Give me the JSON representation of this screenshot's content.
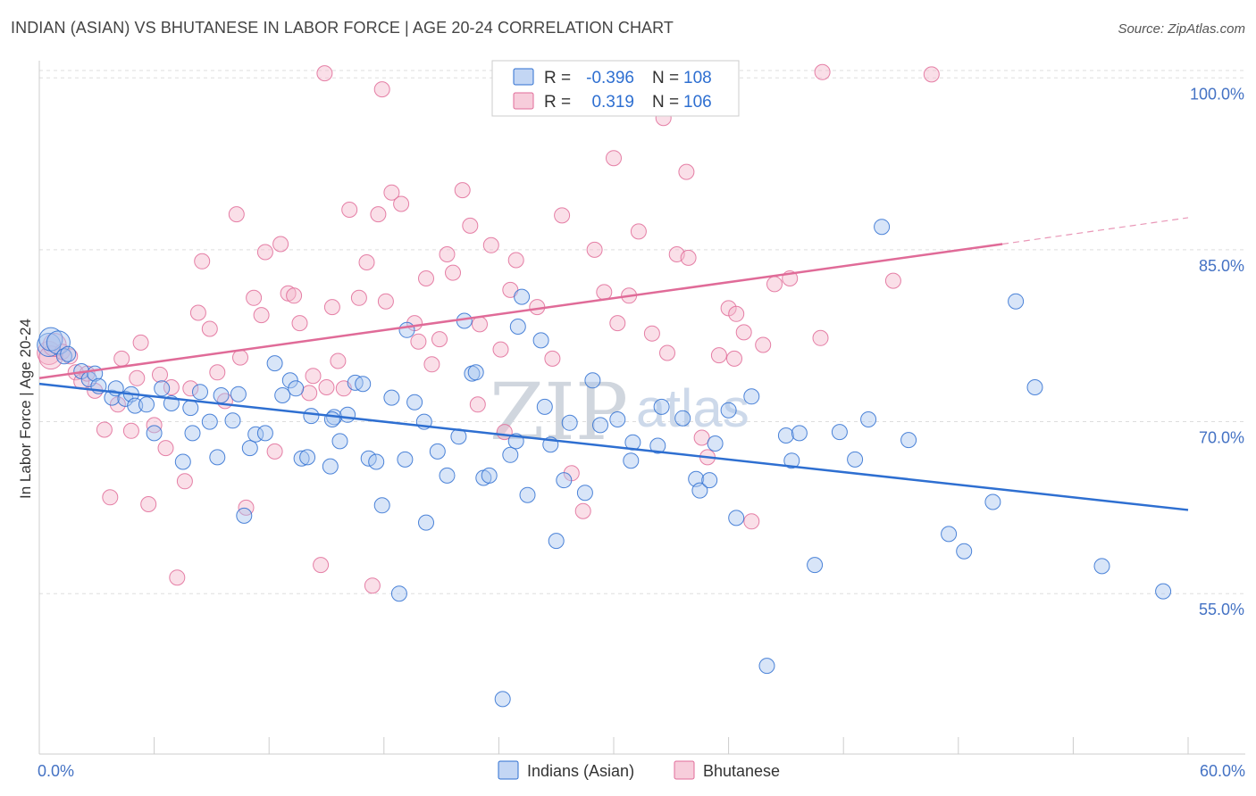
{
  "title": "INDIAN (ASIAN) VS BHUTANESE IN LABOR FORCE | AGE 20-24 CORRELATION CHART",
  "source": "Source: ZipAtlas.com",
  "watermark": {
    "zip": "ZIP",
    "atlas": "atlas"
  },
  "colors": {
    "blue": "#2e6fd1",
    "blue_fill": "#a9c5ef",
    "pink": "#e06b98",
    "pink_fill": "#f4b8cc",
    "tick_text": "#4472c4",
    "grid": "#dddddd"
  },
  "legend": {
    "rows": [
      {
        "r_label": "R =",
        "r_value": "-0.396",
        "n_label": "N =",
        "n_value": "108"
      },
      {
        "r_label": "R =",
        "r_value": "0.319",
        "n_label": "N =",
        "n_value": "106"
      }
    ]
  },
  "bottom_legend": [
    "Indians (Asian)",
    "Bhutanese"
  ],
  "chart_data": {
    "type": "scatter",
    "title": "INDIAN (ASIAN) VS BHUTANESE IN LABOR FORCE | AGE 20-24 CORRELATION CHART",
    "xlabel": "",
    "ylabel": "In Labor Force | Age 20-24",
    "xlim": [
      0,
      60
    ],
    "ylim": [
      41,
      101.5
    ],
    "x_tick_labels": [
      "0.0%",
      "60.0%"
    ],
    "y_ticks": [
      55,
      70,
      85,
      100
    ],
    "y_tick_labels": [
      "55.0%",
      "70.0%",
      "85.0%",
      "100.0%"
    ],
    "grid": true,
    "legend_position": "top-center",
    "series": [
      {
        "name": "Indians (Asian)",
        "color": "#2e6fd1",
        "r": -0.396,
        "n": 108,
        "trend": {
          "x0": 0,
          "y0": 73.3,
          "x1": 60,
          "y1": 62.3
        },
        "points": [
          [
            0.5,
            76.7
          ],
          [
            0.6,
            77.2
          ],
          [
            1.0,
            76.9
          ],
          [
            1.3,
            75.7
          ],
          [
            1.5,
            75.9
          ],
          [
            2.2,
            74.4
          ],
          [
            2.6,
            73.7
          ],
          [
            2.9,
            74.2
          ],
          [
            3.1,
            73.1
          ],
          [
            3.8,
            72.1
          ],
          [
            4.0,
            72.9
          ],
          [
            4.5,
            72.0
          ],
          [
            4.8,
            72.4
          ],
          [
            5.0,
            71.4
          ],
          [
            5.6,
            71.5
          ],
          [
            6.0,
            69.0
          ],
          [
            6.4,
            72.9
          ],
          [
            6.9,
            71.6
          ],
          [
            7.5,
            66.5
          ],
          [
            7.9,
            71.2
          ],
          [
            8.0,
            69.0
          ],
          [
            8.4,
            72.6
          ],
          [
            8.9,
            70.0
          ],
          [
            9.3,
            66.9
          ],
          [
            9.5,
            72.3
          ],
          [
            10.1,
            70.1
          ],
          [
            10.4,
            72.4
          ],
          [
            10.7,
            61.8
          ],
          [
            11.0,
            67.7
          ],
          [
            11.3,
            68.9
          ],
          [
            11.8,
            69.0
          ],
          [
            12.3,
            75.1
          ],
          [
            12.7,
            72.3
          ],
          [
            13.1,
            73.6
          ],
          [
            13.4,
            72.9
          ],
          [
            13.7,
            66.8
          ],
          [
            14.0,
            66.9
          ],
          [
            14.2,
            70.5
          ],
          [
            15.2,
            66.1
          ],
          [
            15.4,
            70.4
          ],
          [
            15.7,
            68.3
          ],
          [
            16.1,
            70.6
          ],
          [
            16.5,
            73.4
          ],
          [
            16.9,
            73.3
          ],
          [
            17.2,
            66.8
          ],
          [
            17.6,
            66.5
          ],
          [
            17.9,
            62.7
          ],
          [
            18.4,
            72.1
          ],
          [
            18.8,
            55.0
          ],
          [
            19.1,
            66.7
          ],
          [
            19.6,
            71.7
          ],
          [
            20.1,
            70.0
          ],
          [
            20.2,
            61.2
          ],
          [
            20.8,
            67.4
          ],
          [
            21.3,
            65.3
          ],
          [
            21.9,
            68.7
          ],
          [
            22.2,
            78.8
          ],
          [
            22.6,
            74.2
          ],
          [
            22.8,
            74.3
          ],
          [
            23.2,
            65.1
          ],
          [
            23.5,
            65.3
          ],
          [
            24.2,
            45.8
          ],
          [
            24.6,
            67.1
          ],
          [
            25.0,
            78.3
          ],
          [
            25.2,
            80.9
          ],
          [
            25.5,
            63.6
          ],
          [
            26.2,
            77.1
          ],
          [
            26.4,
            71.3
          ],
          [
            26.7,
            68.0
          ],
          [
            27.0,
            59.6
          ],
          [
            27.4,
            64.9
          ],
          [
            27.7,
            69.9
          ],
          [
            28.5,
            63.8
          ],
          [
            28.9,
            73.6
          ],
          [
            29.3,
            69.7
          ],
          [
            30.2,
            70.2
          ],
          [
            30.9,
            66.6
          ],
          [
            31.0,
            68.2
          ],
          [
            32.3,
            67.9
          ],
          [
            32.5,
            71.3
          ],
          [
            33.6,
            70.3
          ],
          [
            34.3,
            65.0
          ],
          [
            34.5,
            64.0
          ],
          [
            35.0,
            64.9
          ],
          [
            35.3,
            68.1
          ],
          [
            36.0,
            71.0
          ],
          [
            36.4,
            61.6
          ],
          [
            37.2,
            72.2
          ],
          [
            38.0,
            48.7
          ],
          [
            39.0,
            68.8
          ],
          [
            39.3,
            66.6
          ],
          [
            39.7,
            69.0
          ],
          [
            40.5,
            57.5
          ],
          [
            41.8,
            69.1
          ],
          [
            42.6,
            66.7
          ],
          [
            43.3,
            70.2
          ],
          [
            44.0,
            87.0
          ],
          [
            45.4,
            68.4
          ],
          [
            47.5,
            60.2
          ],
          [
            48.3,
            58.7
          ],
          [
            49.8,
            63.0
          ],
          [
            51.0,
            80.5
          ],
          [
            52.0,
            73.0
          ],
          [
            55.5,
            57.4
          ],
          [
            58.7,
            55.2
          ],
          [
            19.2,
            78.0
          ],
          [
            15.3,
            70.2
          ],
          [
            24.9,
            68.3
          ]
        ]
      },
      {
        "name": "Bhutanese",
        "color": "#e06b98",
        "r": 0.319,
        "n": 106,
        "trend": {
          "x0": 0,
          "y0": 73.8,
          "x1": 50.3,
          "y1": 85.5
        },
        "trend_dashed_to": {
          "x": 60,
          "y": 87.8
        },
        "points": [
          [
            0.5,
            76.0
          ],
          [
            0.6,
            75.6
          ],
          [
            0.8,
            76.7
          ],
          [
            1.2,
            76.1
          ],
          [
            1.6,
            75.7
          ],
          [
            1.9,
            74.3
          ],
          [
            2.2,
            73.5
          ],
          [
            2.5,
            74.2
          ],
          [
            2.9,
            72.7
          ],
          [
            3.4,
            69.3
          ],
          [
            3.7,
            63.4
          ],
          [
            4.1,
            71.5
          ],
          [
            4.3,
            75.5
          ],
          [
            4.8,
            69.2
          ],
          [
            5.1,
            73.8
          ],
          [
            5.3,
            76.9
          ],
          [
            5.7,
            62.8
          ],
          [
            6.0,
            69.7
          ],
          [
            6.3,
            74.1
          ],
          [
            6.6,
            67.7
          ],
          [
            6.9,
            73.0
          ],
          [
            7.2,
            56.4
          ],
          [
            7.6,
            64.8
          ],
          [
            7.9,
            72.9
          ],
          [
            8.3,
            79.5
          ],
          [
            8.5,
            84.0
          ],
          [
            8.9,
            78.1
          ],
          [
            9.3,
            74.3
          ],
          [
            9.7,
            71.8
          ],
          [
            10.3,
            88.1
          ],
          [
            10.5,
            75.6
          ],
          [
            10.8,
            62.5
          ],
          [
            11.2,
            80.8
          ],
          [
            11.6,
            79.3
          ],
          [
            11.8,
            84.8
          ],
          [
            12.3,
            67.4
          ],
          [
            12.6,
            85.5
          ],
          [
            13.0,
            81.2
          ],
          [
            13.3,
            81.0
          ],
          [
            13.6,
            78.6
          ],
          [
            14.1,
            72.5
          ],
          [
            14.7,
            57.5
          ],
          [
            15.0,
            73.0
          ],
          [
            15.3,
            80.0
          ],
          [
            15.6,
            75.3
          ],
          [
            15.9,
            72.9
          ],
          [
            16.2,
            88.5
          ],
          [
            16.7,
            80.8
          ],
          [
            17.1,
            83.9
          ],
          [
            17.4,
            55.7
          ],
          [
            17.7,
            88.1
          ],
          [
            18.1,
            80.5
          ],
          [
            18.4,
            90.0
          ],
          [
            18.9,
            89.0
          ],
          [
            19.6,
            78.6
          ],
          [
            19.8,
            77.0
          ],
          [
            20.2,
            82.5
          ],
          [
            20.5,
            75.0
          ],
          [
            20.9,
            77.2
          ],
          [
            21.3,
            84.6
          ],
          [
            21.6,
            83.0
          ],
          [
            22.1,
            90.2
          ],
          [
            22.5,
            87.1
          ],
          [
            22.9,
            71.5
          ],
          [
            23.0,
            78.5
          ],
          [
            23.6,
            85.4
          ],
          [
            24.1,
            76.3
          ],
          [
            24.3,
            69.1
          ],
          [
            24.6,
            81.5
          ],
          [
            24.9,
            84.1
          ],
          [
            25.0,
            100.4
          ],
          [
            14.9,
            100.4
          ],
          [
            17.9,
            99.0
          ],
          [
            32.6,
            96.5
          ],
          [
            40.9,
            100.5
          ],
          [
            46.6,
            100.3
          ],
          [
            30.0,
            93.0
          ],
          [
            33.8,
            91.8
          ],
          [
            26.0,
            80.0
          ],
          [
            26.8,
            75.5
          ],
          [
            27.3,
            88.0
          ],
          [
            27.8,
            65.5
          ],
          [
            28.4,
            62.2
          ],
          [
            29.0,
            85.0
          ],
          [
            29.5,
            81.3
          ],
          [
            30.2,
            78.6
          ],
          [
            30.8,
            81.0
          ],
          [
            31.3,
            86.6
          ],
          [
            32.0,
            77.7
          ],
          [
            32.8,
            76.0
          ],
          [
            33.3,
            84.6
          ],
          [
            33.9,
            84.3
          ],
          [
            34.6,
            68.6
          ],
          [
            34.9,
            66.9
          ],
          [
            35.5,
            75.8
          ],
          [
            36.0,
            79.9
          ],
          [
            36.4,
            79.4
          ],
          [
            36.8,
            77.8
          ],
          [
            37.2,
            61.3
          ],
          [
            37.8,
            76.7
          ],
          [
            38.4,
            82.0
          ],
          [
            39.2,
            82.5
          ],
          [
            40.8,
            77.3
          ],
          [
            44.6,
            82.3
          ],
          [
            36.3,
            75.5
          ],
          [
            14.3,
            74.0
          ]
        ]
      }
    ]
  }
}
